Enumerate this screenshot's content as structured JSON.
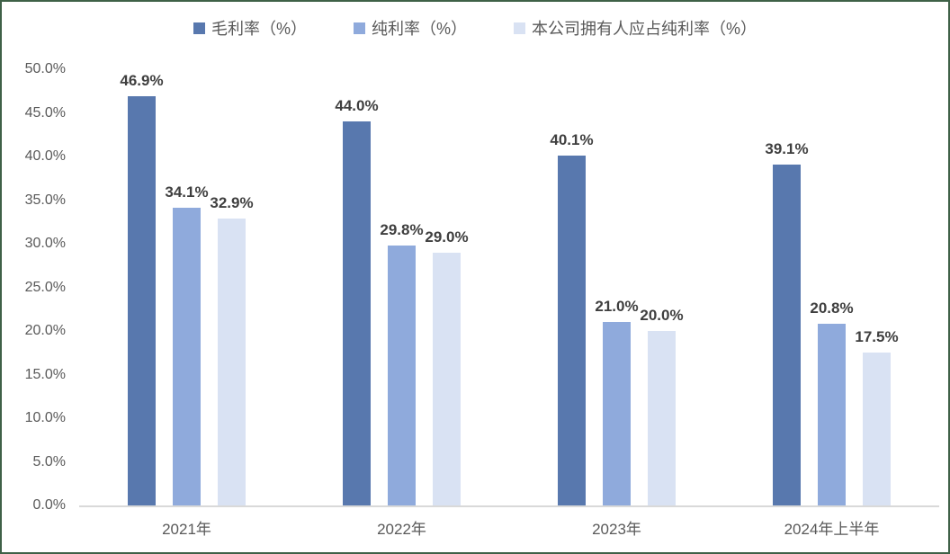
{
  "frame": {
    "border_color": "#3f6147",
    "background_color": "#ffffff"
  },
  "chart_data": {
    "type": "bar",
    "title": "",
    "xlabel": "",
    "ylabel": "",
    "categories": [
      "2021年",
      "2022年",
      "2023年",
      "2024年上半年"
    ],
    "series": [
      {
        "name": "毛利率（%）",
        "color": "#5878ae",
        "values": [
          46.9,
          44.0,
          40.1,
          39.1
        ],
        "labels": [
          "46.9%",
          "44.0%",
          "40.1%",
          "39.1%"
        ]
      },
      {
        "name": "纯利率（%）",
        "color": "#8faadc",
        "values": [
          34.1,
          29.8,
          21.0,
          20.8
        ],
        "labels": [
          "34.1%",
          "29.8%",
          "21.0%",
          "20.8%"
        ]
      },
      {
        "name": "本公司拥有人应占纯利率（%）",
        "color": "#d9e2f3",
        "values": [
          32.9,
          29.0,
          20.0,
          17.5
        ],
        "labels": [
          "32.9%",
          "29.0%",
          "20.0%",
          "17.5%"
        ]
      }
    ],
    "ylim": [
      0,
      50
    ],
    "y_tick_step": 5,
    "y_ticks": [
      "0.0%",
      "5.0%",
      "10.0%",
      "15.0%",
      "20.0%",
      "25.0%",
      "30.0%",
      "35.0%",
      "40.0%",
      "45.0%",
      "50.0%"
    ],
    "grid": false,
    "legend_position": "top",
    "axis_line_color": "#d9d9d9",
    "tick_label_color": "#595959",
    "value_label_color": "#3f3f3f"
  }
}
